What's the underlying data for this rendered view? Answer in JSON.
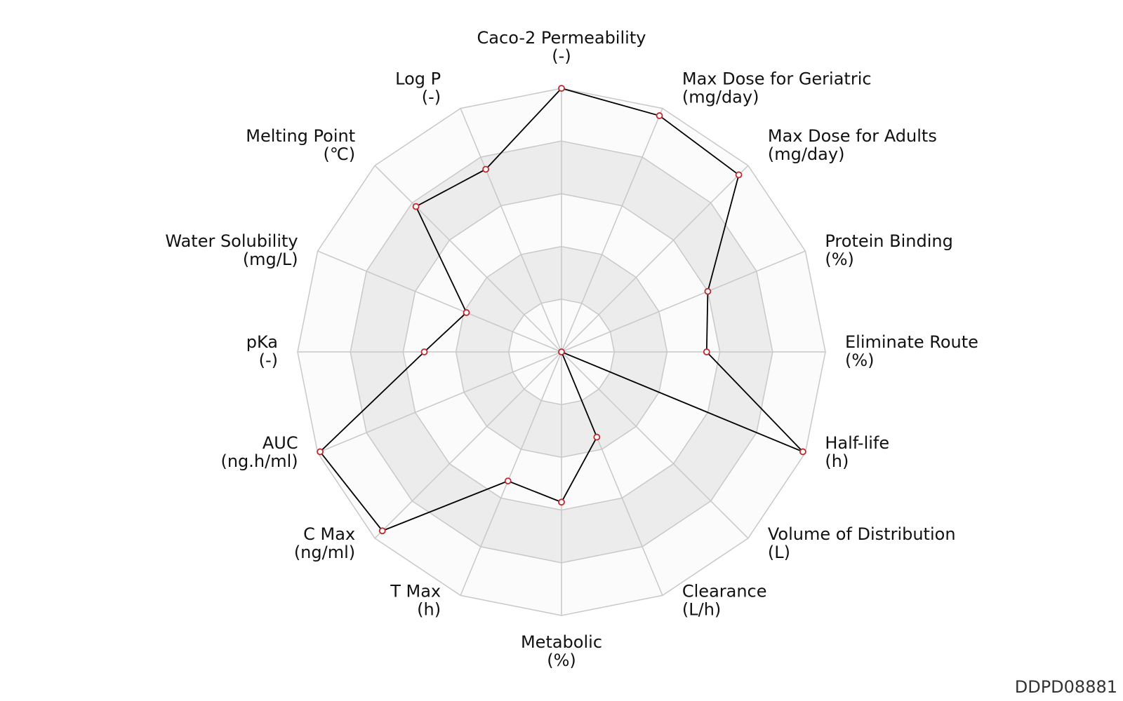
{
  "figure_id": "DDPD08881",
  "chart_data": {
    "type": "radar",
    "axes": [
      {
        "name": "Caco-2 Permeability",
        "unit": "(-)"
      },
      {
        "name": "Max Dose for Geriatric",
        "unit": "(mg/day)"
      },
      {
        "name": "Max Dose for Adults",
        "unit": "(mg/day)"
      },
      {
        "name": "Protein Binding",
        "unit": "(%)"
      },
      {
        "name": "Eliminate Route",
        "unit": "(%)"
      },
      {
        "name": "Half-life",
        "unit": "(h)"
      },
      {
        "name": "Volume of Distribution",
        "unit": "(L)"
      },
      {
        "name": "Clearance",
        "unit": "(L/h)"
      },
      {
        "name": "Metabolic",
        "unit": "(%)"
      },
      {
        "name": "T Max",
        "unit": "(h)"
      },
      {
        "name": "C Max",
        "unit": "(ng/ml)"
      },
      {
        "name": "AUC",
        "unit": "(ng.h/ml)"
      },
      {
        "name": "pKa",
        "unit": "(-)"
      },
      {
        "name": "Water Solubility",
        "unit": "(mg/L)"
      },
      {
        "name": "Melting Point",
        "unit": "(℃)"
      },
      {
        "name": "Log P",
        "unit": "(-)"
      }
    ],
    "series": [
      {
        "values": [
          1.0,
          0.97,
          0.95,
          0.6,
          0.55,
          0.99,
          0.0,
          0.35,
          0.57,
          0.53,
          0.96,
          0.99,
          0.52,
          0.39,
          0.78,
          0.75
        ]
      }
    ],
    "range": [
      0,
      1
    ],
    "rings": 5,
    "colors": {
      "series_line": "#000000",
      "marker_stroke": "#c0282d",
      "marker_fill": "#ffffff",
      "grid": "#c8c8c8",
      "band_light": "#fbfbfb",
      "band_dark": "#ececec"
    }
  }
}
